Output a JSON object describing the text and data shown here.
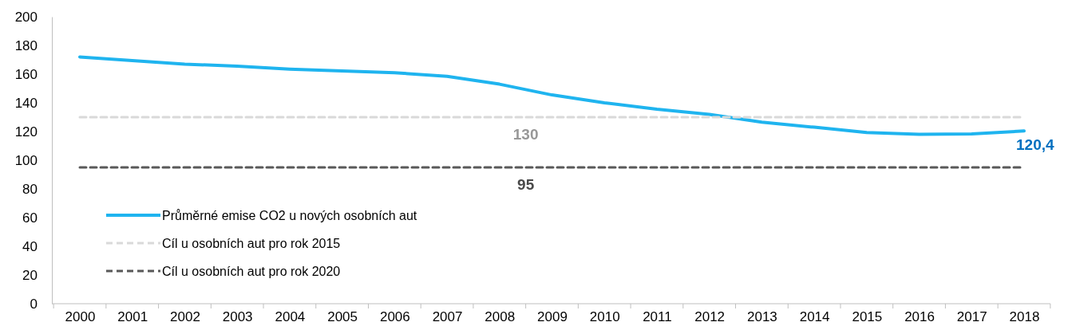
{
  "chart_data": {
    "type": "line",
    "categories": [
      "2000",
      "2001",
      "2002",
      "2003",
      "2004",
      "2005",
      "2006",
      "2007",
      "2008",
      "2009",
      "2010",
      "2011",
      "2012",
      "2013",
      "2014",
      "2015",
      "2016",
      "2017",
      "2018"
    ],
    "ylim": [
      0,
      200
    ],
    "yticks": [
      0,
      20,
      40,
      60,
      80,
      100,
      120,
      140,
      160,
      180,
      200
    ],
    "grid": false,
    "legend": "bottom left",
    "marker": "none",
    "series": [
      {
        "name": "Průměrné emise CO2 u nových osobních aut",
        "color": "#1fb4ef",
        "line_style": "solid",
        "values": [
          172,
          169.5,
          167,
          165.5,
          163.5,
          162.2,
          161,
          158.5,
          153,
          145.5,
          140,
          135.5,
          132,
          126.5,
          123,
          119.3,
          118,
          118.4,
          120.4
        ],
        "value_labels": [
          null,
          null,
          null,
          null,
          null,
          null,
          null,
          null,
          null,
          null,
          null,
          null,
          null,
          null,
          null,
          null,
          null,
          null,
          "120,4"
        ]
      },
      {
        "name": "Cíl u osobních aut pro rok 2015",
        "color": "#d9d9d9",
        "line_style": "dashed",
        "values": [
          130,
          130,
          130,
          130,
          130,
          130,
          130,
          130,
          130,
          130,
          130,
          130,
          130,
          130,
          130,
          130,
          130,
          130,
          130
        ],
        "value_labels": [
          null,
          null,
          null,
          null,
          null,
          null,
          null,
          null,
          "130",
          null,
          null,
          null,
          null,
          null,
          null,
          null,
          null,
          null,
          null
        ]
      },
      {
        "name": "Cíl u osobních aut pro rok 2020",
        "color": "#595959",
        "line_style": "dashed",
        "values": [
          95,
          95,
          95,
          95,
          95,
          95,
          95,
          95,
          95,
          95,
          95,
          95,
          95,
          95,
          95,
          95,
          95,
          95,
          95
        ],
        "value_labels": [
          null,
          null,
          null,
          null,
          null,
          null,
          null,
          null,
          "95",
          null,
          null,
          null,
          null,
          null,
          null,
          null,
          null,
          null,
          null
        ]
      }
    ]
  }
}
